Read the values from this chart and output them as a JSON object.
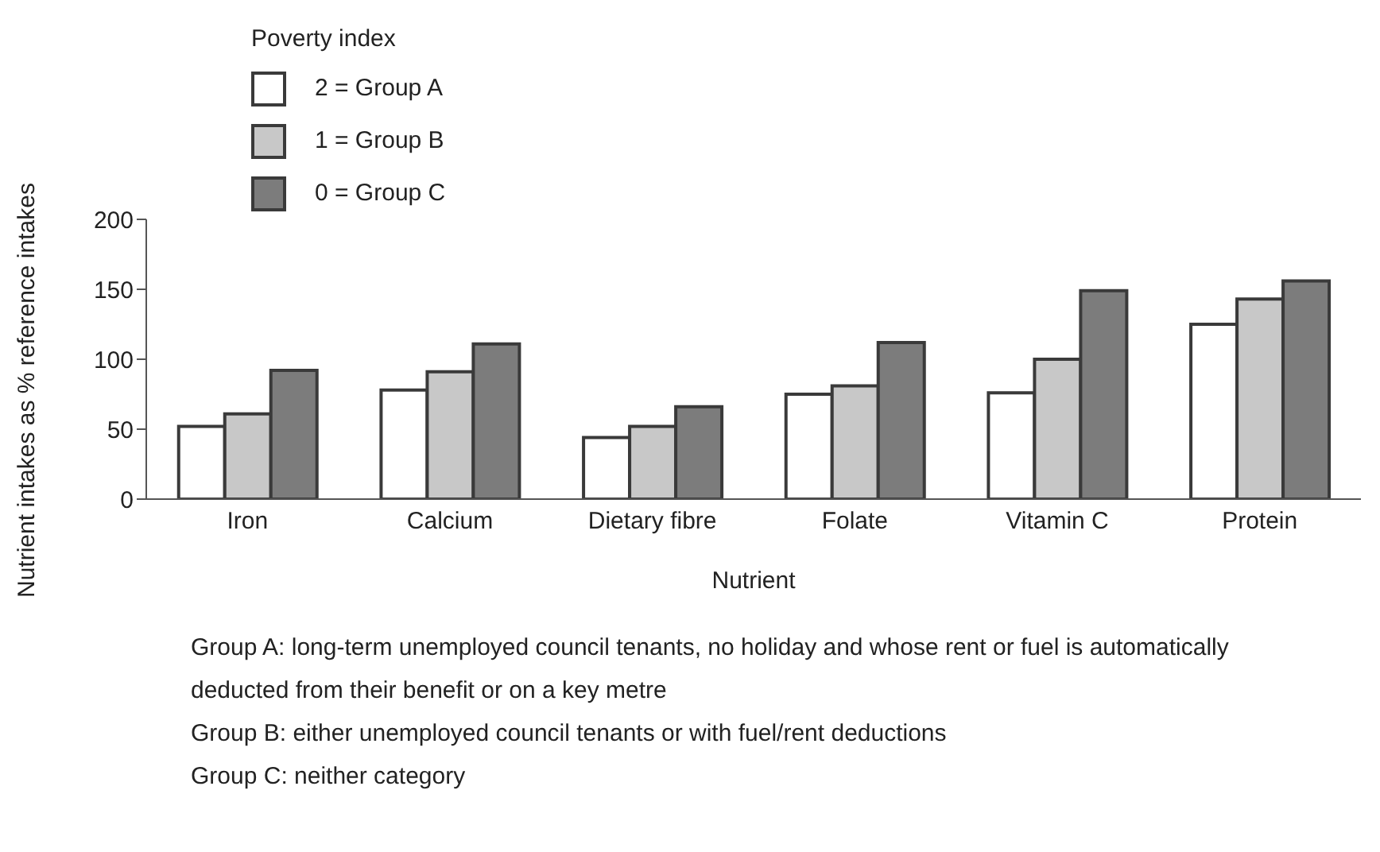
{
  "chart_data": {
    "type": "bar",
    "xlabel": "Nutrient",
    "ylabel": "Nutrient intakes as % reference intakes",
    "legend_title": "Poverty index",
    "categories": [
      "Iron",
      "Calcium",
      "Dietary fibre",
      "Folate",
      "Vitamin C",
      "Protein"
    ],
    "series": [
      {
        "name": "2 = Group A",
        "color": "#ffffff",
        "values": [
          52,
          78,
          44,
          75,
          76,
          125
        ]
      },
      {
        "name": "1 = Group B",
        "color": "#c8c8c8",
        "values": [
          61,
          91,
          52,
          81,
          100,
          143
        ]
      },
      {
        "name": "0 = Group C",
        "color": "#7c7c7c",
        "values": [
          92,
          111,
          66,
          112,
          149,
          156
        ]
      }
    ],
    "ylim": [
      0,
      200
    ],
    "yticks": [
      0,
      50,
      100,
      150,
      200
    ],
    "grid": false,
    "legend": "top left",
    "annotations": [
      "Group A: long-term unemployed council tenants, no holiday and whose rent or fuel is automatically deducted from their benefit or on a key metre",
      "Group B: either unemployed council tenants or with fuel/rent deductions",
      "Group C: neither category"
    ]
  }
}
